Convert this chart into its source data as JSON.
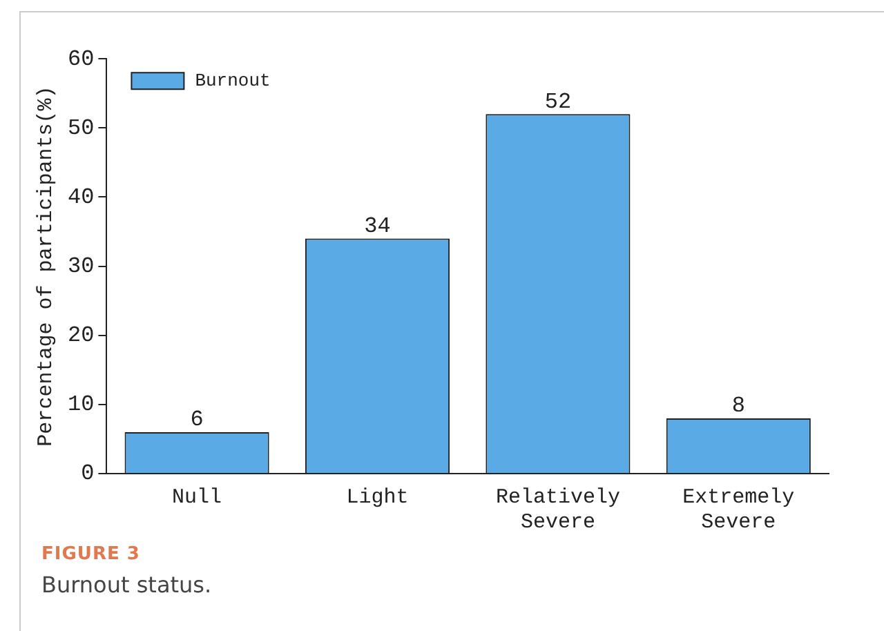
{
  "chart_data": {
    "type": "bar",
    "ylabel": "Percentage of participants(%)",
    "categories": [
      "Null",
      "Light",
      "Relatively Severe",
      "Extremely Severe"
    ],
    "series": [
      {
        "name": "Burnout",
        "color": "#5aaae6",
        "values": [
          6,
          34,
          52,
          8
        ]
      }
    ],
    "ylim": [
      0,
      60
    ],
    "yticks": [
      0,
      10,
      20,
      30,
      40,
      50,
      60
    ],
    "grid": false,
    "legend": "top left",
    "data_labels": true,
    "annotations": [
      "FIGURE 3",
      "Burnout status."
    ]
  }
}
